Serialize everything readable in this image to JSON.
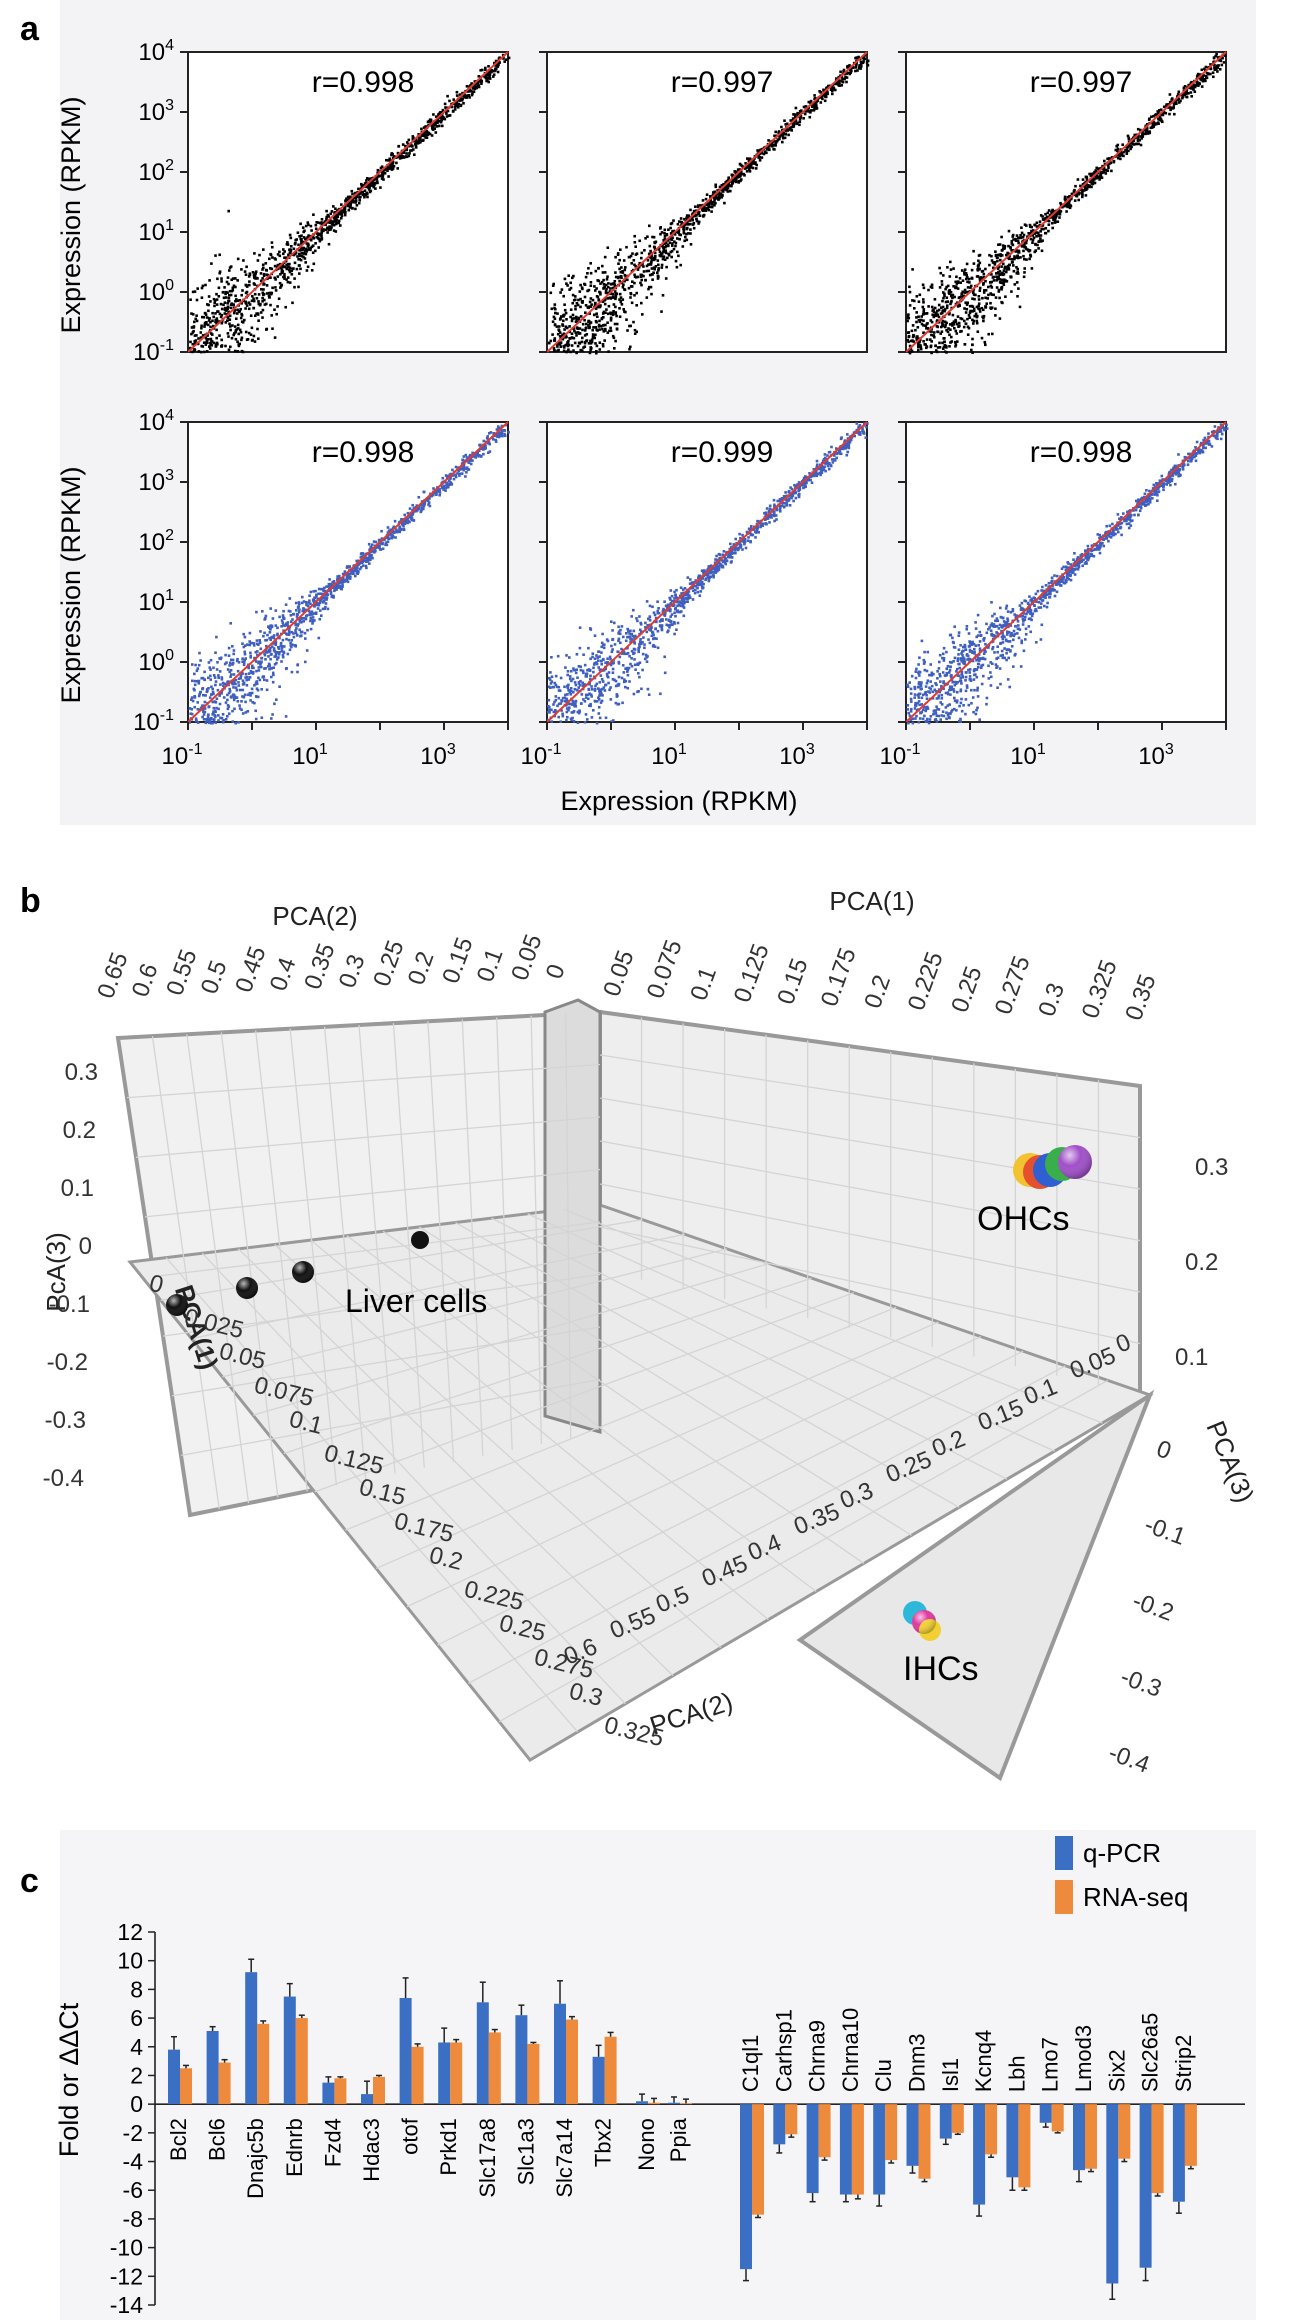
{
  "panel_a": {
    "letter": "a",
    "y_axis_title": "Expression (RPKM)",
    "x_axis_title": "Expression (RPKM)",
    "tick_base": "10",
    "y_tick_exponents": [
      "-1",
      "0",
      "1",
      "2",
      "3",
      "4"
    ],
    "x_tick_exponents": [
      "-1",
      "1",
      "3"
    ],
    "fit_line_color": "#e23a2e",
    "rows": [
      {
        "point_color": "#000000",
        "r_values": [
          "r=0.998",
          "r=0.997",
          "r=0.997"
        ]
      },
      {
        "point_color": "#3f5fbf",
        "r_values": [
          "r=0.998",
          "r=0.999",
          "r=0.998"
        ]
      }
    ]
  },
  "panel_b": {
    "letter": "b",
    "pca2_label": "PCA(2)",
    "pca1_label": "PCA(1)",
    "pca3_label": "PCA(3)",
    "pca3_label_alt": "PcA(3)",
    "pca1_label_alt": "PCA(1)",
    "top_pca2_ticks": [
      "0.65",
      "0.6",
      "0.55",
      "0.5",
      "0.45",
      "0.4",
      "0.35",
      "0.3",
      "0.25",
      "0.2",
      "0.15",
      "0.1",
      "0.05",
      "0"
    ],
    "top_pca1_ticks": [
      "0.05",
      "0.075",
      "0.1",
      "0.125",
      "0.15",
      "0.175",
      "0.2",
      "0.225",
      "0.25",
      "0.275",
      "0.3",
      "0.325",
      "0.35"
    ],
    "left_pca3_ticks": [
      "0.3",
      "0.2",
      "0.1",
      "0",
      "-0.1",
      "-0.2",
      "-0.3",
      "-0.4"
    ],
    "right_pca3_ticks_upper": [
      "0.3",
      "0.2",
      "0.1"
    ],
    "right_pca3_ticks_lower": [
      "0",
      "-0.1",
      "-0.2",
      "-0.3",
      "-0.4"
    ],
    "floor_pca1_ticks": [
      "0",
      "0.025",
      "0.05",
      "0.075",
      "0.1",
      "0.125",
      "0.15",
      "0.175",
      "0.2",
      "0.225",
      "0.25",
      "0.275",
      "0.3",
      "0.325"
    ],
    "floor_pca2_ticks": [
      "0.6",
      "0.55",
      "0.5",
      "0.45",
      "0.4",
      "0.35",
      "0.3",
      "0.25",
      "0.2",
      "0.15",
      "0.1",
      "0.05",
      "0"
    ],
    "groups": [
      {
        "name": "Liver cells",
        "color": "#111111"
      },
      {
        "name": "OHCs",
        "colors": [
          "#f2c230",
          "#e5502e",
          "#2f5fd0",
          "#3aae4a",
          "#a050c8"
        ]
      },
      {
        "name": "IHCs",
        "colors": [
          "#2cb8d8",
          "#e03aa0",
          "#f2d034",
          "#f0e040"
        ]
      }
    ]
  },
  "panel_c": {
    "letter": "c",
    "y_axis_title": "Fold or ΔΔCt",
    "legend": [
      {
        "label": "q-PCR",
        "color": "#3a6fc4"
      },
      {
        "label": "RNA-seq",
        "color": "#ee8a3c"
      }
    ]
  },
  "chart_data": [
    {
      "type": "scatter",
      "panel": "a",
      "x_scale": "log",
      "y_scale": "log",
      "xlim": [
        0.1,
        10000
      ],
      "ylim": [
        0.1,
        10000
      ],
      "ylabel": "Expression (RPKM)",
      "xlabel": "Expression (RPKM)",
      "correlations": [
        {
          "row": 1,
          "col": 1,
          "r": 0.998
        },
        {
          "row": 1,
          "col": 2,
          "r": 0.997
        },
        {
          "row": 1,
          "col": 3,
          "r": 0.997
        },
        {
          "row": 2,
          "col": 1,
          "r": 0.998
        },
        {
          "row": 2,
          "col": 2,
          "r": 0.999
        },
        {
          "row": 2,
          "col": 3,
          "r": 0.998
        }
      ]
    },
    {
      "type": "scatter",
      "panel": "b",
      "groups": [
        {
          "name": "Liver cells",
          "points": 4
        },
        {
          "name": "OHCs",
          "points": 5
        },
        {
          "name": "IHCs",
          "points": 4
        }
      ]
    },
    {
      "type": "bar",
      "panel": "c",
      "ylabel": "Fold or ΔΔCt",
      "ylim": [
        -14,
        12
      ],
      "y_ticks": [
        "12",
        "10",
        "8",
        "6",
        "4",
        "2",
        "0",
        "-2",
        "-4",
        "-6",
        "-8",
        "-10",
        "-12",
        "-14"
      ],
      "legend_position": "top-right",
      "categories": [
        "Bcl2",
        "Bcl6",
        "Dnajc5b",
        "Ednrb",
        "Fzd4",
        "Hdac3",
        "otof",
        "Prkd1",
        "Slc17a8",
        "Slc1a3",
        "Slc7a14",
        "Tbx2",
        "Nono",
        "Ppia",
        "C1ql1",
        "Carhsp1",
        "Chrna9",
        "Chrna10",
        "Clu",
        "Dnm3",
        "Isl1",
        "Kcnq4",
        "Lbh",
        "Lmo7",
        "Lmod3",
        "Six2",
        "Slc26a5",
        "Strip2"
      ],
      "series": [
        {
          "name": "q-PCR",
          "color": "#3a6fc4",
          "values": [
            3.8,
            5.1,
            9.2,
            7.5,
            1.5,
            0.7,
            7.4,
            4.3,
            7.1,
            6.2,
            7.0,
            3.3,
            0.2,
            0.1,
            -11.5,
            -2.8,
            -6.2,
            -6.3,
            -6.3,
            -4.3,
            -2.4,
            -7.0,
            -5.1,
            -1.3,
            -4.6,
            -12.5,
            -11.4,
            -6.8
          ],
          "errors": [
            0.9,
            0.3,
            0.9,
            0.9,
            0.4,
            0.9,
            1.4,
            1.0,
            1.4,
            0.7,
            1.6,
            0.8,
            0.5,
            0.4,
            0.8,
            0.6,
            0.6,
            0.5,
            0.8,
            0.5,
            0.4,
            0.8,
            0.9,
            0.3,
            0.8,
            1.1,
            0.9,
            0.8
          ]
        },
        {
          "name": "RNA-seq",
          "color": "#ee8a3c",
          "values": [
            2.5,
            2.9,
            5.6,
            6.0,
            1.8,
            1.9,
            4.0,
            4.3,
            5.0,
            4.2,
            5.9,
            4.7,
            0.1,
            0.05,
            -7.7,
            -2.1,
            -3.7,
            -6.3,
            -3.9,
            -5.2,
            -2.0,
            -3.5,
            -5.8,
            -1.9,
            -4.5,
            -3.8,
            -6.2,
            -4.3
          ],
          "errors": [
            0.2,
            0.2,
            0.2,
            0.2,
            0.1,
            0.1,
            0.2,
            0.2,
            0.2,
            0.1,
            0.2,
            0.3,
            0.3,
            0.3,
            0.2,
            0.2,
            0.2,
            0.3,
            0.2,
            0.2,
            0.1,
            0.2,
            0.2,
            0.1,
            0.2,
            0.2,
            0.2,
            0.2
          ]
        }
      ]
    }
  ]
}
